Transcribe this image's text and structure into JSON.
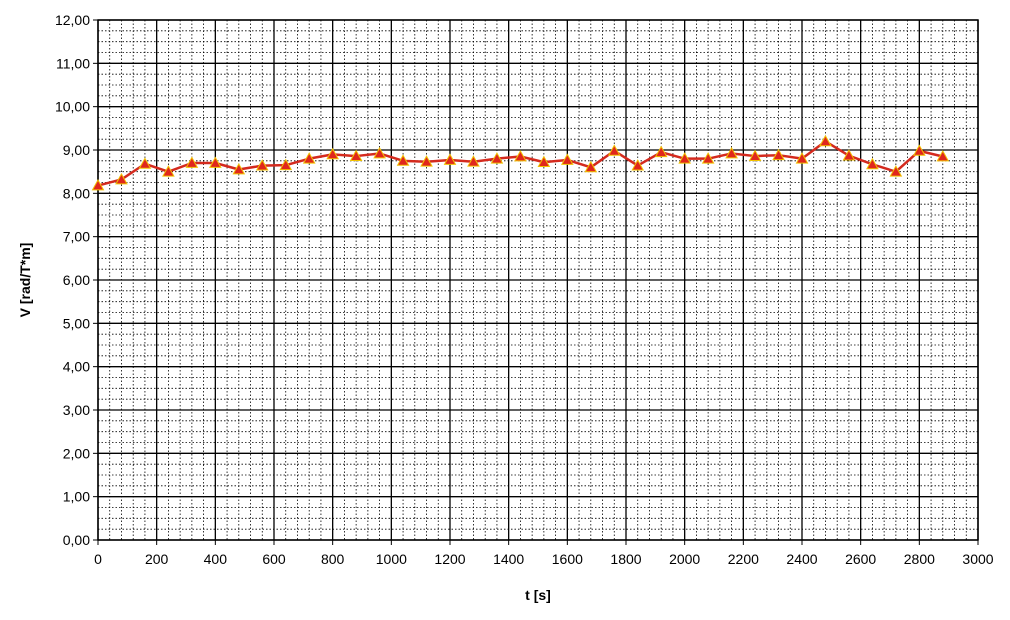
{
  "chart_data": {
    "type": "line",
    "title": "",
    "xlabel": "t [s]",
    "ylabel": "V [rad/T*m]",
    "xlim": [
      0,
      3000
    ],
    "ylim": [
      0,
      12
    ],
    "x_ticks": [
      0,
      200,
      400,
      600,
      800,
      1000,
      1200,
      1400,
      1600,
      1800,
      2000,
      2200,
      2400,
      2600,
      2800,
      3000
    ],
    "y_ticks": [
      0,
      1,
      2,
      3,
      4,
      5,
      6,
      7,
      8,
      9,
      10,
      11,
      12
    ],
    "x_tick_labels": [
      "0",
      "200",
      "400",
      "600",
      "800",
      "1000",
      "1200",
      "1400",
      "1600",
      "1800",
      "2000",
      "2200",
      "2400",
      "2600",
      "2800",
      "3000"
    ],
    "y_tick_labels": [
      "0,00",
      "1,00",
      "2,00",
      "3,00",
      "4,00",
      "5,00",
      "6,00",
      "7,00",
      "8,00",
      "9,00",
      "10,00",
      "11,00",
      "12,00"
    ],
    "grid": "major solid, minor dotted",
    "legend": "none",
    "colors": {
      "line": "#d42a1e",
      "marker_fill": "#e0271d",
      "marker_edge": "#f2c200",
      "grid_major": "#000000",
      "grid_minor": "#000000"
    },
    "series": [
      {
        "x": [
          0,
          80,
          160,
          240,
          320,
          400,
          480,
          560,
          640,
          720,
          800,
          880,
          960,
          1040,
          1120,
          1200,
          1280,
          1360,
          1440,
          1520,
          1600,
          1680,
          1760,
          1840,
          1920,
          2000,
          2080,
          2160,
          2240,
          2320,
          2400,
          2480,
          2560,
          2640,
          2720,
          2800,
          2880
        ],
        "y": [
          8.18,
          8.32,
          8.68,
          8.5,
          8.7,
          8.7,
          8.55,
          8.64,
          8.65,
          8.8,
          8.9,
          8.86,
          8.92,
          8.75,
          8.73,
          8.77,
          8.73,
          8.8,
          8.85,
          8.72,
          8.77,
          8.6,
          8.98,
          8.64,
          8.95,
          8.8,
          8.8,
          8.92,
          8.86,
          8.88,
          8.8,
          9.2,
          8.87,
          8.67,
          8.5,
          8.98,
          8.85
        ]
      }
    ]
  }
}
